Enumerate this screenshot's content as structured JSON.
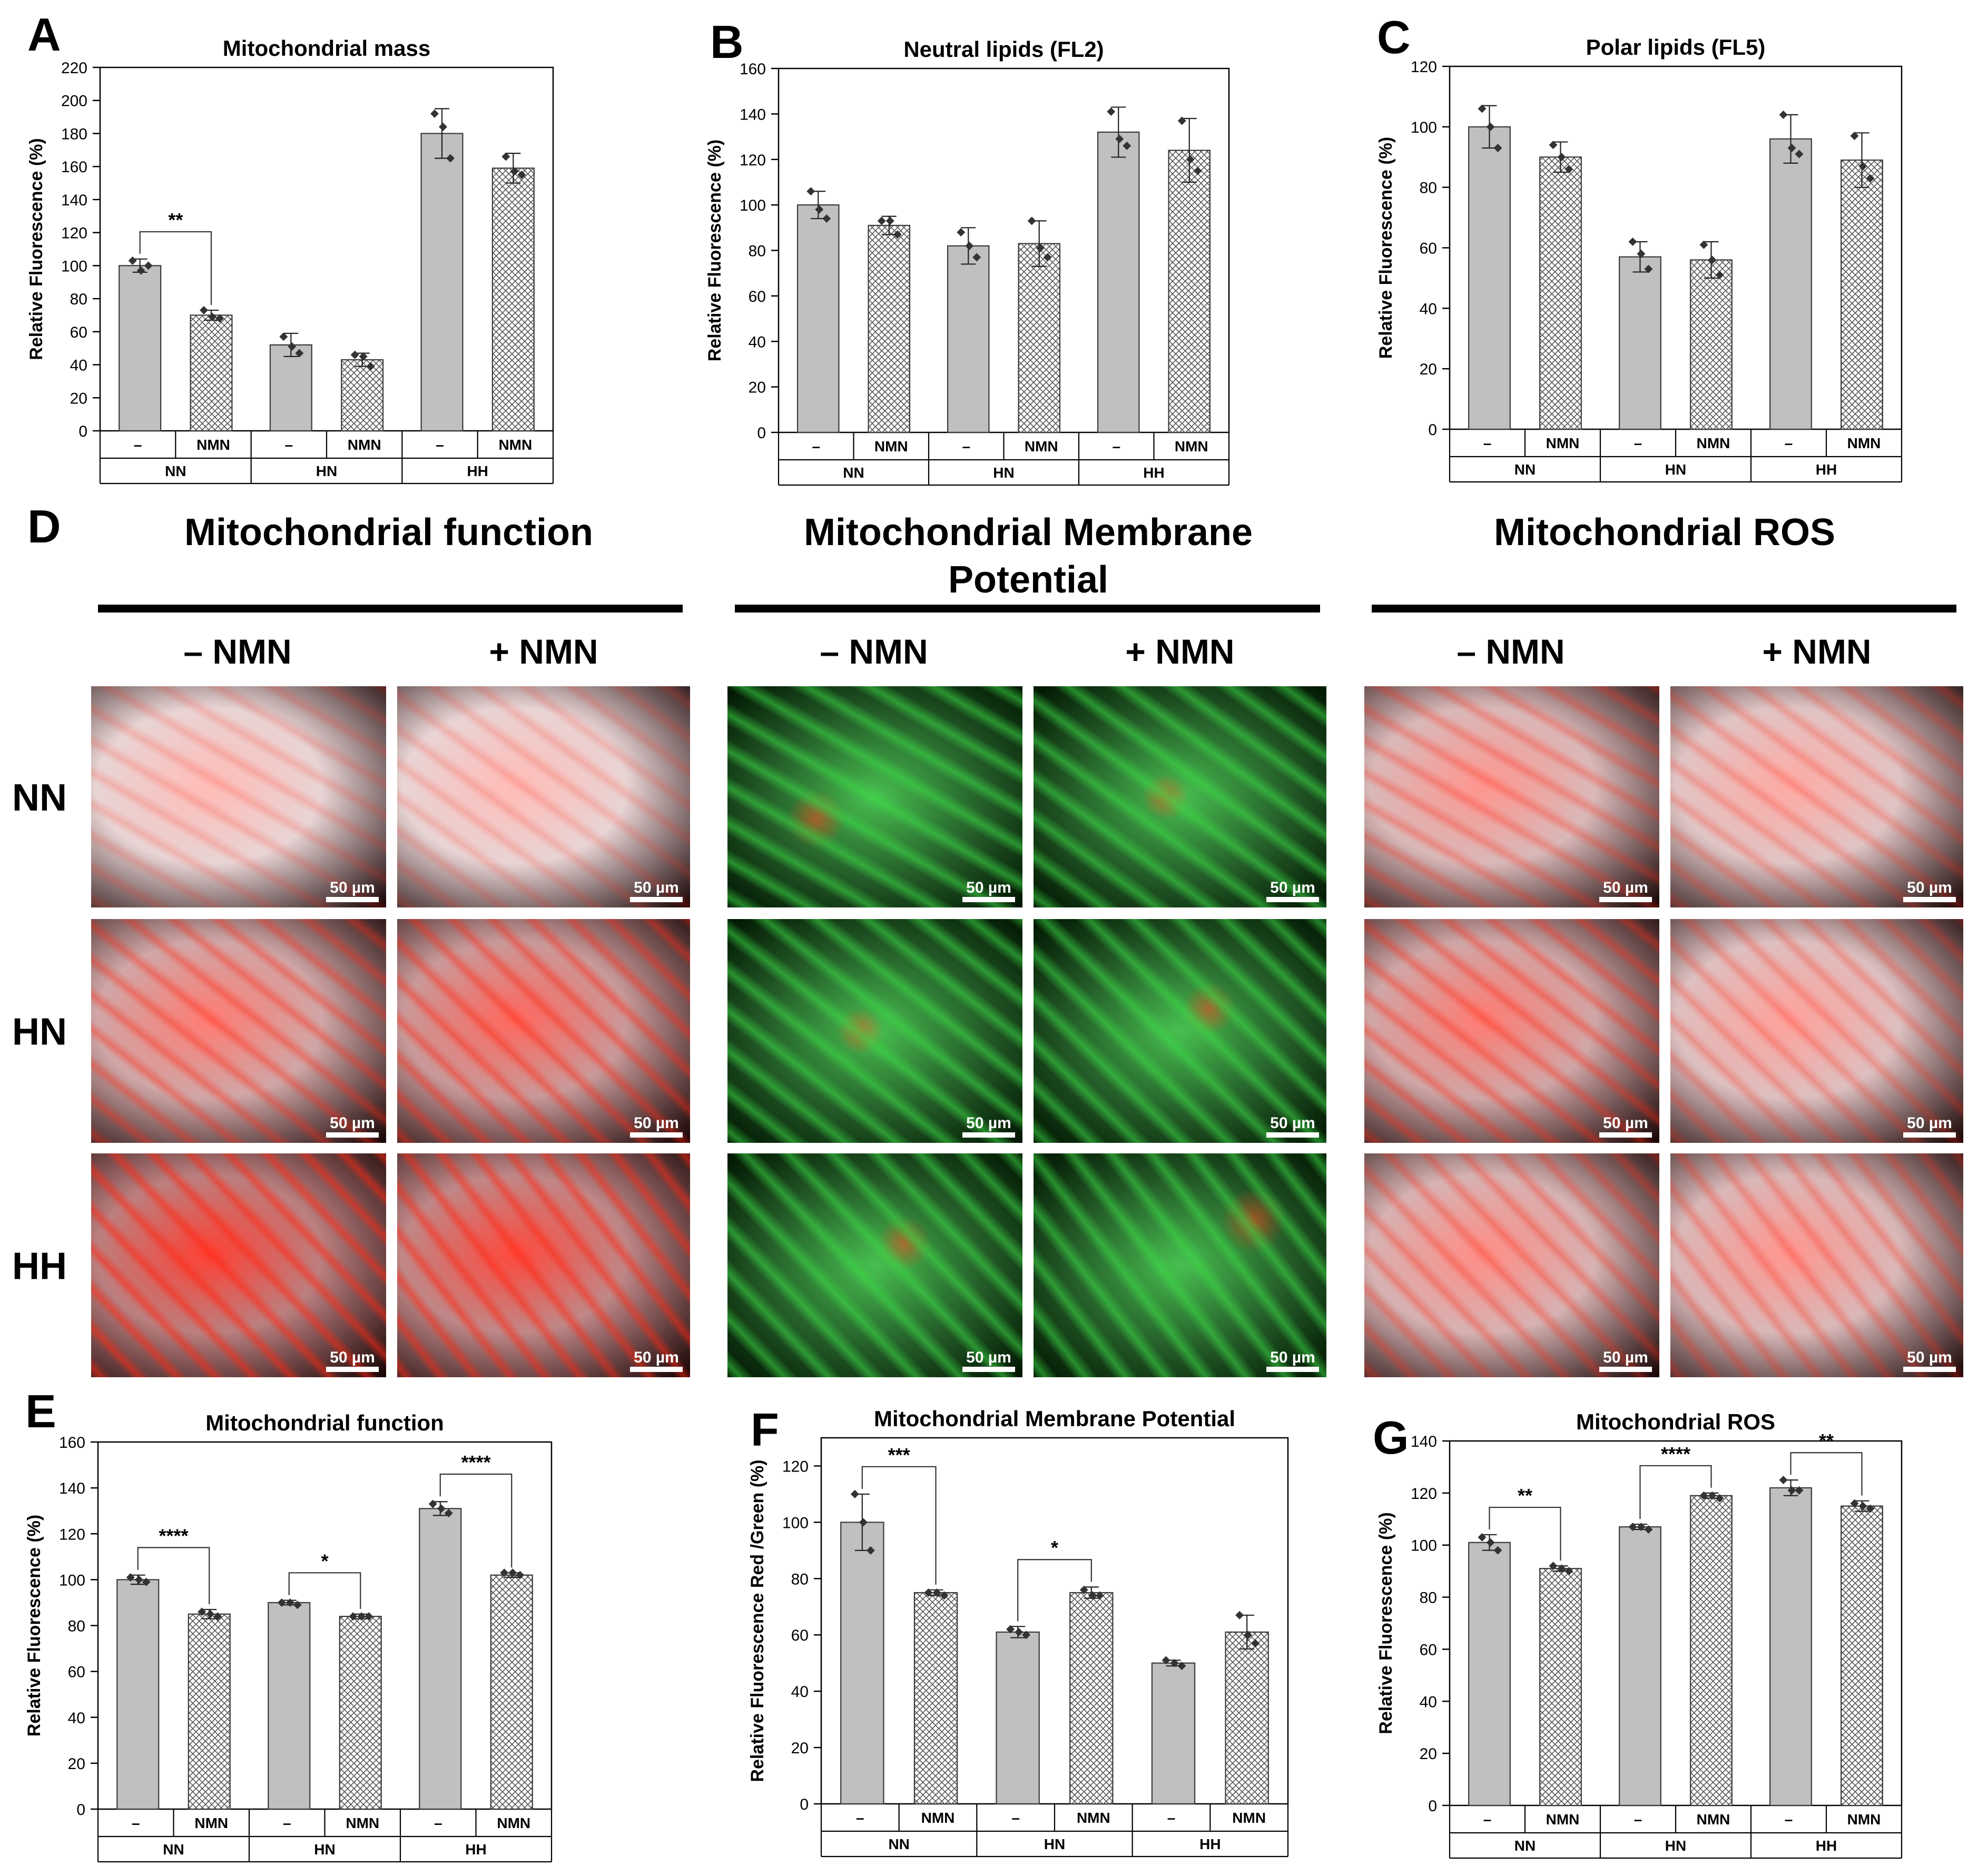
{
  "panel_letters": [
    "A",
    "B",
    "C",
    "D",
    "E",
    "F",
    "G"
  ],
  "chart_data": [
    {
      "panel": "A",
      "type": "bar",
      "title": "Mitochondrial mass",
      "ylabel": "Relative Fluorescence (%)",
      "ylim": [
        0,
        220
      ],
      "yticks": [
        0,
        20,
        40,
        60,
        80,
        100,
        120,
        140,
        160,
        180,
        200,
        220
      ],
      "treatments": [
        "–",
        "NMN",
        "–",
        "NMN",
        "–",
        "NMN"
      ],
      "groups": [
        "NN",
        "HN",
        "HH"
      ],
      "values": [
        100,
        70,
        52,
        43,
        180,
        159
      ],
      "errors": [
        4,
        3,
        7,
        4,
        15,
        9
      ],
      "points": [
        [
          103,
          97,
          100
        ],
        [
          73,
          69,
          68
        ],
        [
          57,
          51,
          47
        ],
        [
          46,
          45,
          39
        ],
        [
          192,
          184,
          165
        ],
        [
          166,
          157,
          155
        ]
      ],
      "significance": [
        {
          "from": 0,
          "to": 1,
          "label": "**"
        }
      ]
    },
    {
      "panel": "B",
      "type": "bar",
      "title": "Neutral lipids (FL2)",
      "ylabel": "Relative Fluorescence (%)",
      "ylim": [
        0,
        160
      ],
      "yticks": [
        0,
        20,
        40,
        60,
        80,
        100,
        120,
        140,
        160
      ],
      "treatments": [
        "–",
        "NMN",
        "–",
        "NMN",
        "–",
        "NMN"
      ],
      "groups": [
        "NN",
        "HN",
        "HH"
      ],
      "values": [
        100,
        91,
        82,
        83,
        132,
        124
      ],
      "errors": [
        6,
        4,
        8,
        10,
        11,
        14
      ],
      "points": [
        [
          106,
          98,
          94
        ],
        [
          93,
          93,
          87
        ],
        [
          88,
          82,
          77
        ],
        [
          93,
          81,
          77
        ],
        [
          141,
          129,
          126
        ],
        [
          137,
          120,
          115
        ]
      ],
      "significance": []
    },
    {
      "panel": "C",
      "type": "bar",
      "title": "Polar lipids (FL5)",
      "ylabel": "Relative Fluorescence (%)",
      "ylim": [
        0,
        120
      ],
      "yticks": [
        0,
        20,
        40,
        60,
        80,
        100,
        120
      ],
      "treatments": [
        "–",
        "NMN",
        "–",
        "NMN",
        "–",
        "NMN"
      ],
      "groups": [
        "NN",
        "HN",
        "HH"
      ],
      "values": [
        100,
        90,
        57,
        56,
        96,
        89
      ],
      "errors": [
        7,
        5,
        5,
        6,
        8,
        9
      ],
      "points": [
        [
          106,
          100,
          93
        ],
        [
          94,
          90,
          86
        ],
        [
          62,
          58,
          53
        ],
        [
          61,
          56,
          51
        ],
        [
          104,
          93,
          91
        ],
        [
          97,
          87,
          83
        ]
      ],
      "significance": []
    },
    {
      "panel": "E",
      "type": "bar",
      "title": "Mitochondrial function",
      "ylabel": "Relative Fluorescence (%)",
      "ylim": [
        0,
        160
      ],
      "yticks": [
        0,
        20,
        40,
        60,
        80,
        100,
        120,
        140,
        160
      ],
      "treatments": [
        "–",
        "NMN",
        "–",
        "NMN",
        "–",
        "NMN"
      ],
      "groups": [
        "NN",
        "HN",
        "HH"
      ],
      "values": [
        100,
        85,
        90,
        84,
        131,
        102
      ],
      "errors": [
        2,
        2,
        1,
        1,
        3,
        1
      ],
      "points": [
        [
          101,
          100,
          99
        ],
        [
          86,
          85,
          84
        ],
        [
          90,
          90,
          89
        ],
        [
          84,
          84,
          84
        ],
        [
          133,
          131,
          129
        ],
        [
          103,
          103,
          102
        ]
      ],
      "significance": [
        {
          "from": 0,
          "to": 1,
          "label": "****"
        },
        {
          "from": 2,
          "to": 3,
          "label": "*"
        },
        {
          "from": 4,
          "to": 5,
          "label": "****"
        }
      ]
    },
    {
      "panel": "F",
      "type": "bar",
      "title": "Mitochondrial Membrane Potential",
      "ylabel": "Relative Fluorescence Red /Green (%)",
      "ylim": [
        0,
        130
      ],
      "yticks": [
        0,
        20,
        40,
        60,
        80,
        100,
        120
      ],
      "treatments": [
        "–",
        "NMN",
        "–",
        "NMN",
        "–",
        "NMN"
      ],
      "groups": [
        "NN",
        "HN",
        "HH"
      ],
      "values": [
        100,
        75,
        61,
        75,
        50,
        61
      ],
      "errors": [
        10,
        1,
        2,
        2,
        1,
        6
      ],
      "points": [
        [
          110,
          100,
          90
        ],
        [
          75,
          75,
          74
        ],
        [
          62,
          61,
          60
        ],
        [
          76,
          74,
          74
        ],
        [
          51,
          50,
          49
        ],
        [
          67,
          60,
          57
        ]
      ],
      "significance": [
        {
          "from": 0,
          "to": 1,
          "label": "***"
        },
        {
          "from": 2,
          "to": 3,
          "label": "*"
        }
      ]
    },
    {
      "panel": "G",
      "type": "bar",
      "title": "Mitochondrial ROS",
      "ylabel": "Relative Fluorescence (%)",
      "ylim": [
        0,
        140
      ],
      "yticks": [
        0,
        20,
        40,
        60,
        80,
        100,
        120,
        140
      ],
      "treatments": [
        "–",
        "NMN",
        "–",
        "NMN",
        "–",
        "NMN"
      ],
      "groups": [
        "NN",
        "HN",
        "HH"
      ],
      "values": [
        101,
        91,
        107,
        119,
        122,
        115
      ],
      "errors": [
        3,
        1,
        1,
        1,
        3,
        2
      ],
      "points": [
        [
          103,
          101,
          98
        ],
        [
          92,
          91,
          90
        ],
        [
          107,
          107,
          106
        ],
        [
          119,
          119,
          118
        ],
        [
          125,
          121,
          121
        ],
        [
          116,
          115,
          114
        ]
      ],
      "significance": [
        {
          "from": 0,
          "to": 1,
          "label": "**"
        },
        {
          "from": 2,
          "to": 3,
          "label": "****"
        },
        {
          "from": 4,
          "to": 5,
          "label": "**"
        }
      ]
    }
  ],
  "micrographs": {
    "section_titles": [
      "Mitochondrial function",
      "Mitochondrial Membrane Potential",
      "Mitochondrial ROS"
    ],
    "condition_headers": [
      "– NMN",
      "+ NMN"
    ],
    "row_labels": [
      "NN",
      "HN",
      "HH"
    ],
    "scale_bar_label": "50 µm",
    "colors": {
      "red_channel": "#ff2a12",
      "green_channel": "#2fd24a"
    }
  },
  "colors": {
    "bar_fill": "#c0c0c0",
    "bar_stroke": "#404040",
    "axis": "#000000"
  }
}
